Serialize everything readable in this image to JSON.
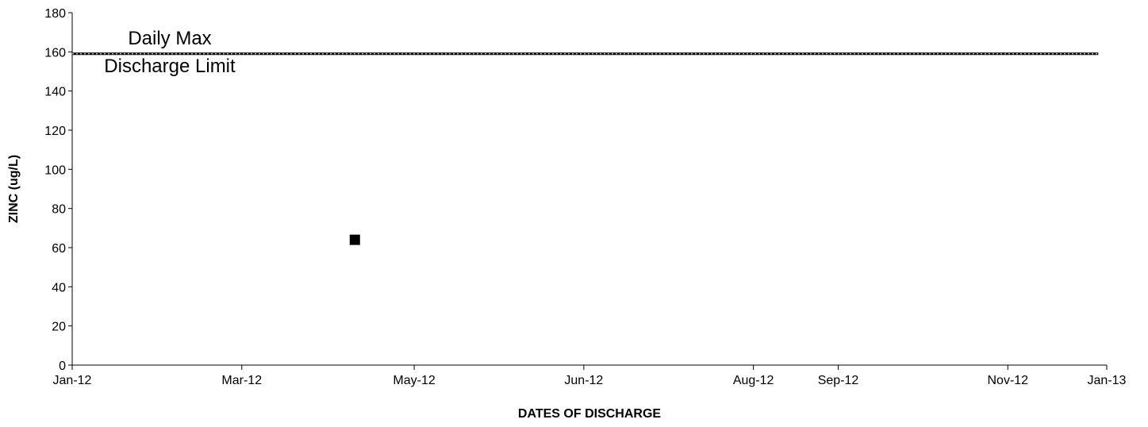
{
  "chart_data": {
    "type": "scatter",
    "title": "",
    "xlabel": "DATES OF DISCHARGE",
    "ylabel": "ZINC (ug/L)",
    "ylim": [
      0,
      180
    ],
    "yticks": [
      0,
      20,
      40,
      60,
      80,
      100,
      120,
      140,
      160,
      180
    ],
    "xlim": [
      "2012-01-01",
      "2013-01-01"
    ],
    "xticks": [
      {
        "date": "2012-01-01",
        "label": "Jan-12"
      },
      {
        "date": "2012-03-01",
        "label": "Mar-12"
      },
      {
        "date": "2012-05-01",
        "label": "May-12"
      },
      {
        "date": "2012-06-30",
        "label": "Jun-12"
      },
      {
        "date": "2012-08-29",
        "label": "Aug-12"
      },
      {
        "date": "2012-09-28",
        "label": "Sep-12"
      },
      {
        "date": "2012-11-27",
        "label": "Nov-12"
      },
      {
        "date": "2013-01-01",
        "label": "Jan-13"
      }
    ],
    "grid": false,
    "series": [
      {
        "points": [
          {
            "x": "2012-04-10",
            "y": 64
          }
        ],
        "marker": "square",
        "color": "#000000"
      }
    ],
    "limit_line": {
      "y": 159,
      "x_start": "2012-01-01",
      "x_end": "2012-12-29",
      "label_line1": "Daily Max",
      "label_line2": "Discharge Limit",
      "color": "#000000"
    }
  }
}
